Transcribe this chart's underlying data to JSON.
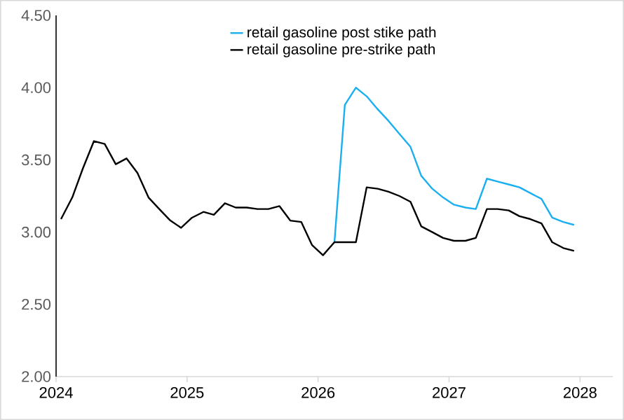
{
  "chart_data": {
    "type": "line",
    "x": [
      "2024-01-15",
      "2024-02-15",
      "2024-03-15",
      "2024-04-15",
      "2024-05-15",
      "2024-06-15",
      "2024-07-15",
      "2024-08-15",
      "2024-09-15",
      "2024-10-15",
      "2024-11-15",
      "2024-12-15",
      "2025-01-15",
      "2025-02-15",
      "2025-03-15",
      "2025-04-15",
      "2025-05-15",
      "2025-06-15",
      "2025-07-15",
      "2025-08-15",
      "2025-09-15",
      "2025-10-15",
      "2025-11-15",
      "2025-12-15",
      "2026-01-15",
      "2026-02-15",
      "2026-03-15",
      "2026-04-15",
      "2026-05-15",
      "2026-06-15",
      "2026-07-15",
      "2026-08-15",
      "2026-09-15",
      "2026-10-15",
      "2026-11-15",
      "2026-12-15",
      "2027-01-15",
      "2027-02-15",
      "2027-03-15",
      "2027-04-15",
      "2027-05-15",
      "2027-06-15",
      "2027-07-15",
      "2027-08-15",
      "2027-09-15",
      "2027-10-15",
      "2027-11-15",
      "2027-12-15"
    ],
    "series": [
      {
        "name": "retail gasoline post stike path",
        "color": "#1aaff0",
        "x": [
          "2026-02-15",
          "2026-03-15",
          "2026-04-15",
          "2026-05-15",
          "2026-06-15",
          "2026-07-15",
          "2026-08-15",
          "2026-09-15",
          "2026-10-15",
          "2026-11-15",
          "2026-12-15",
          "2027-01-15",
          "2027-02-15",
          "2027-03-15",
          "2027-04-15",
          "2027-05-15",
          "2027-06-15",
          "2027-07-15",
          "2027-08-15",
          "2027-09-15",
          "2027-10-15",
          "2027-11-15",
          "2027-12-15"
        ],
        "values": [
          2.93,
          3.88,
          4.0,
          3.94,
          3.85,
          3.77,
          3.68,
          3.59,
          3.39,
          3.3,
          3.24,
          3.19,
          3.17,
          3.16,
          3.37,
          3.35,
          3.33,
          3.31,
          3.27,
          3.23,
          3.1,
          3.07,
          3.05
        ]
      },
      {
        "name": "retail gasoline pre-strike path",
        "color": "#000000",
        "values": [
          3.09,
          3.24,
          3.44,
          3.63,
          3.61,
          3.47,
          3.51,
          3.41,
          3.24,
          3.16,
          3.08,
          3.03,
          3.1,
          3.14,
          3.12,
          3.2,
          3.17,
          3.17,
          3.16,
          3.16,
          3.18,
          3.08,
          3.07,
          2.91,
          2.84,
          2.93,
          2.93,
          2.93,
          3.31,
          3.3,
          3.28,
          3.25,
          3.21,
          3.04,
          3.0,
          2.96,
          2.94,
          2.94,
          2.96,
          3.16,
          3.16,
          3.15,
          3.11,
          3.09,
          3.06,
          2.93,
          2.89,
          2.87
        ]
      }
    ],
    "xlim": [
      "2024-01-01",
      "2028-04-01"
    ],
    "xticks": [
      {
        "value": "2024-01-01",
        "label": "2024"
      },
      {
        "value": "2025-01-01",
        "label": "2025"
      },
      {
        "value": "2026-01-01",
        "label": "2026"
      },
      {
        "value": "2027-01-01",
        "label": "2027"
      },
      {
        "value": "2028-01-01",
        "label": "2028"
      }
    ],
    "ylim": [
      2.0,
      4.5
    ],
    "yticks": [
      {
        "value": 2.0,
        "label": "2.00"
      },
      {
        "value": 2.5,
        "label": "2.50"
      },
      {
        "value": 3.0,
        "label": "3.00"
      },
      {
        "value": 3.5,
        "label": "3.50"
      },
      {
        "value": 4.0,
        "label": "4.00"
      },
      {
        "value": 4.5,
        "label": "4.50"
      }
    ],
    "legend": "top",
    "grid": false,
    "marker": "none",
    "line_style": "solid"
  }
}
